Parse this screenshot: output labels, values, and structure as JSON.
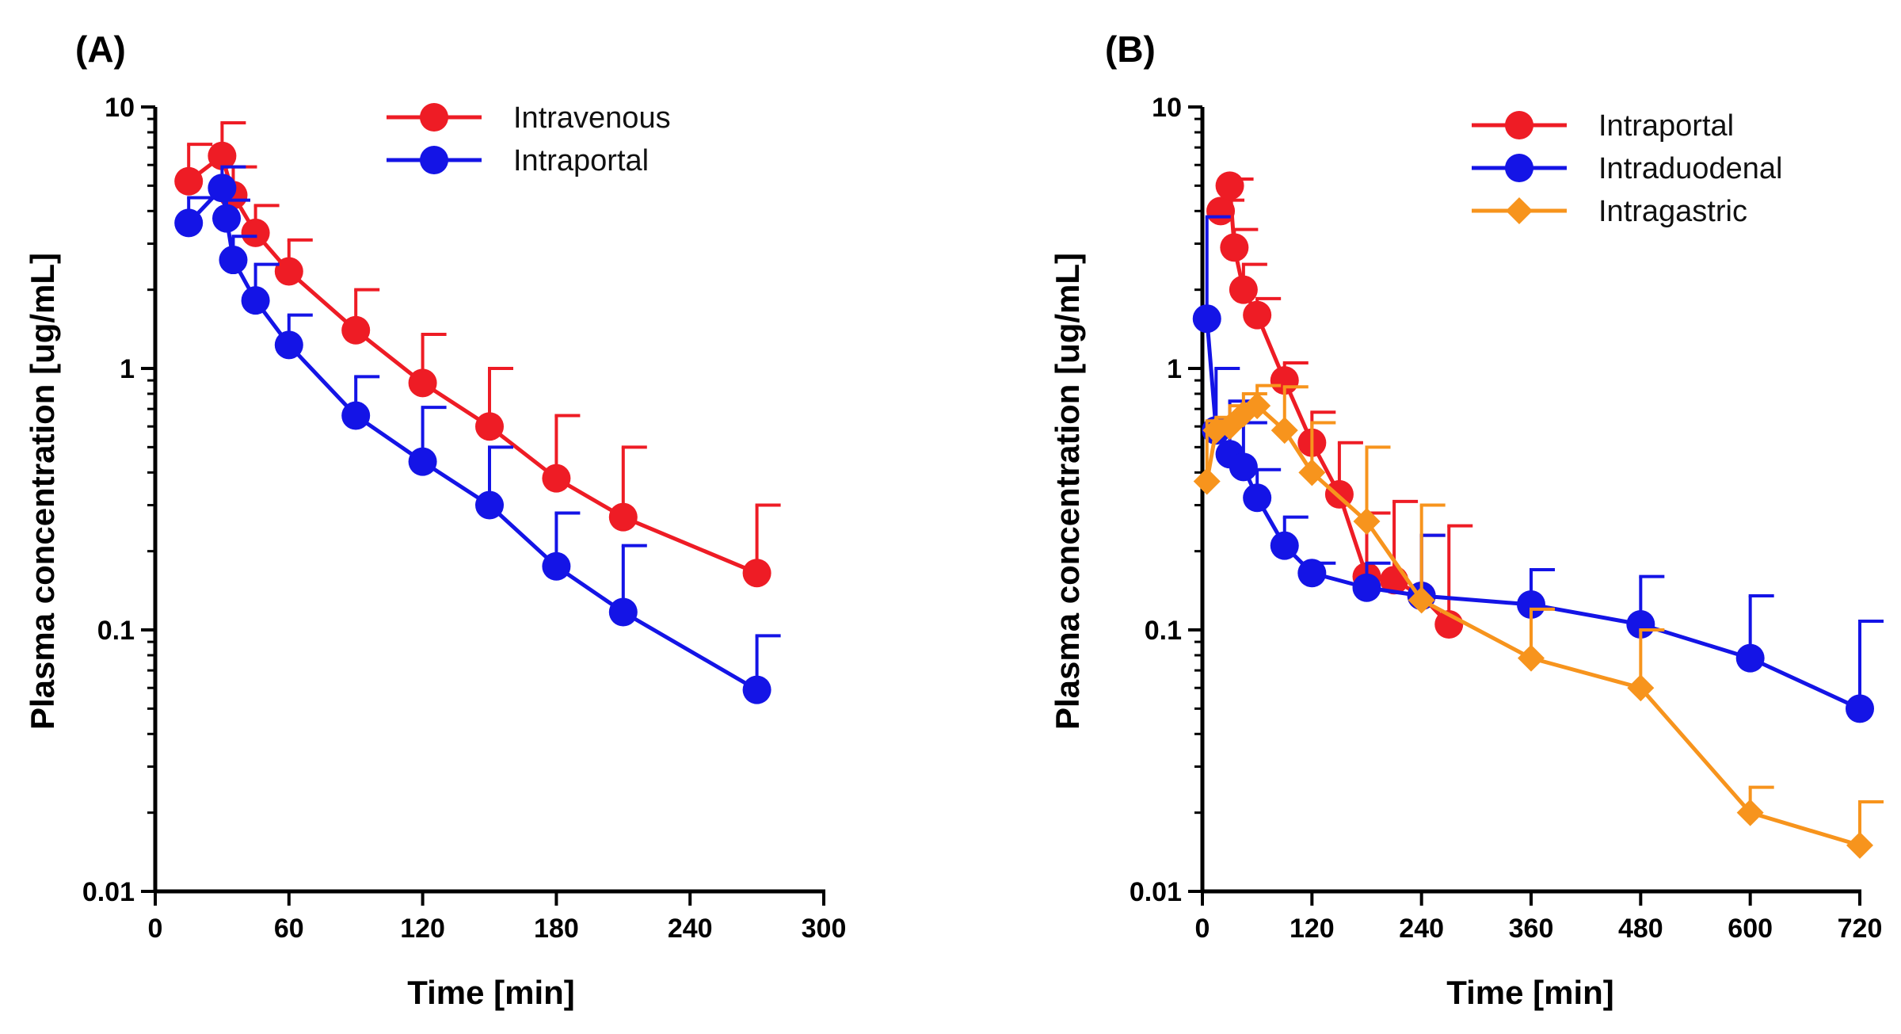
{
  "chart_data": [
    {
      "panel_label": "(A)",
      "type": "line",
      "y_scale": "log",
      "xlabel": "Time [min]",
      "ylabel": "Plasma concentration [ug/mL]",
      "xlim": [
        0,
        300
      ],
      "ylim": [
        0.01,
        10
      ],
      "x_ticks": [
        0,
        60,
        120,
        180,
        240,
        300
      ],
      "x_tick_labels": [
        "0",
        "60",
        "120",
        "180",
        "240",
        "300"
      ],
      "y_ticks": [
        0.01,
        0.1,
        1,
        10
      ],
      "y_tick_labels": [
        "0.01",
        "0.1",
        "1",
        "10"
      ],
      "legend_position": "top-right",
      "series": [
        {
          "name": "Intravenous",
          "color": "#ee1c25",
          "marker": "circle",
          "x": [
            15,
            30,
            35,
            45,
            60,
            90,
            120,
            150,
            180,
            210,
            270
          ],
          "y": [
            5.2,
            6.5,
            4.6,
            3.3,
            2.35,
            1.4,
            0.88,
            0.6,
            0.38,
            0.27,
            0.165
          ],
          "err_upper": [
            7.2,
            8.7,
            5.9,
            4.2,
            3.1,
            2.0,
            1.35,
            1.0,
            0.66,
            0.5,
            0.3
          ]
        },
        {
          "name": "Intraportal",
          "color": "#1414e6",
          "marker": "circle",
          "x": [
            15,
            30,
            32,
            35,
            45,
            60,
            90,
            120,
            150,
            180,
            210,
            270
          ],
          "y": [
            3.6,
            4.9,
            3.75,
            2.6,
            1.82,
            1.23,
            0.66,
            0.44,
            0.3,
            0.175,
            0.117,
            0.059
          ],
          "err_upper": [
            4.5,
            5.9,
            4.4,
            3.2,
            2.5,
            1.6,
            0.93,
            0.71,
            0.5,
            0.28,
            0.21,
            0.095
          ]
        }
      ]
    },
    {
      "panel_label": "(B)",
      "type": "line",
      "y_scale": "log",
      "xlabel": "Time [min]",
      "ylabel": "Plasma concentration [ug/mL]",
      "xlim": [
        0,
        720
      ],
      "ylim": [
        0.01,
        10
      ],
      "x_ticks": [
        0,
        120,
        240,
        360,
        480,
        600,
        720
      ],
      "x_tick_labels": [
        "0",
        "120",
        "240",
        "360",
        "480",
        "600",
        "720"
      ],
      "y_ticks": [
        0.01,
        0.1,
        1,
        10
      ],
      "y_tick_labels": [
        "0.01",
        "0.1",
        "1",
        "10"
      ],
      "legend_position": "top-right",
      "series": [
        {
          "name": "Intraportal",
          "color": "#ee1c25",
          "marker": "circle",
          "x": [
            20,
            30,
            35,
            45,
            60,
            90,
            120,
            150,
            180,
            210,
            240,
            270
          ],
          "y": [
            4.0,
            5.0,
            2.9,
            2.0,
            1.6,
            0.9,
            0.52,
            0.33,
            0.16,
            0.155,
            0.135,
            0.105
          ],
          "err_upper": [
            4.4,
            5.3,
            3.4,
            2.5,
            1.85,
            1.05,
            0.68,
            0.52,
            0.28,
            0.31,
            0.23,
            0.25
          ]
        },
        {
          "name": "Intraduodenal",
          "color": "#1414e6",
          "marker": "circle",
          "x": [
            5,
            15,
            30,
            45,
            60,
            90,
            120,
            180,
            240,
            360,
            480,
            600,
            720
          ],
          "y": [
            1.55,
            0.58,
            0.47,
            0.42,
            0.32,
            0.21,
            0.165,
            0.145,
            0.135,
            0.125,
            0.105,
            0.078,
            0.05
          ],
          "err_upper": [
            3.8,
            1.0,
            0.75,
            0.62,
            0.41,
            0.27,
            0.18,
            0.18,
            0.23,
            0.17,
            0.16,
            0.135,
            0.108
          ]
        },
        {
          "name": "Intragastric",
          "color": "#f7941d",
          "marker": "diamond",
          "x": [
            5,
            15,
            30,
            45,
            60,
            90,
            120,
            180,
            240,
            360,
            480,
            600,
            720
          ],
          "y": [
            0.37,
            0.58,
            0.6,
            0.67,
            0.72,
            0.58,
            0.4,
            0.26,
            0.13,
            0.078,
            0.06,
            0.02,
            0.015
          ],
          "err_upper": [
            0.63,
            0.65,
            0.72,
            0.8,
            0.86,
            0.85,
            0.62,
            0.5,
            0.3,
            0.12,
            0.1,
            0.025,
            0.022
          ]
        }
      ]
    }
  ]
}
